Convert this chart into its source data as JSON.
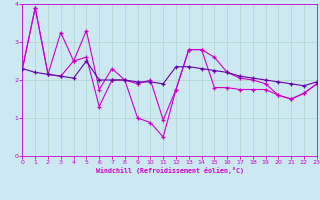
{
  "xlabel": "Windchill (Refroidissement éolien,°C)",
  "bg_color": "#cce8f0",
  "grid_color": "#b0d4cc",
  "line_color_jagged": "#cc00cc",
  "line_color_trend": "#6600aa",
  "xlim": [
    0,
    23
  ],
  "ylim": [
    0,
    4
  ],
  "xticks": [
    0,
    1,
    2,
    3,
    4,
    5,
    6,
    7,
    8,
    9,
    10,
    11,
    12,
    13,
    14,
    15,
    16,
    17,
    18,
    19,
    20,
    21,
    22,
    23
  ],
  "yticks": [
    0,
    1,
    2,
    3,
    4
  ],
  "series1_x": [
    0,
    1,
    2,
    3,
    4,
    5,
    6,
    7,
    8,
    9,
    10,
    11,
    12,
    13,
    14,
    15,
    16,
    17,
    18,
    19,
    20,
    21,
    22,
    23
  ],
  "series1_y": [
    2.3,
    3.9,
    2.15,
    2.1,
    2.5,
    2.6,
    1.3,
    2.0,
    2.0,
    1.9,
    2.0,
    0.95,
    1.75,
    2.8,
    2.8,
    2.6,
    2.2,
    2.05,
    2.0,
    1.9,
    1.6,
    1.5,
    1.65,
    1.9
  ],
  "series2_x": [
    0,
    1,
    2,
    3,
    4,
    5,
    6,
    7,
    8,
    9,
    10,
    11,
    12,
    13,
    14,
    15,
    16,
    17,
    18,
    19,
    20,
    21,
    22,
    23
  ],
  "series2_y": [
    2.3,
    3.9,
    2.15,
    3.25,
    2.5,
    3.3,
    1.75,
    2.3,
    2.0,
    1.0,
    0.88,
    0.5,
    1.75,
    2.8,
    2.8,
    1.8,
    1.8,
    1.75,
    1.75,
    1.75,
    1.6,
    1.5,
    1.65,
    1.9
  ],
  "series3_x": [
    0,
    1,
    2,
    3,
    4,
    5,
    6,
    7,
    8,
    9,
    10,
    11,
    12,
    13,
    14,
    15,
    16,
    17,
    18,
    19,
    20,
    21,
    22,
    23
  ],
  "series3_y": [
    2.3,
    2.2,
    2.15,
    2.1,
    2.05,
    2.5,
    2.0,
    2.0,
    2.0,
    1.95,
    1.95,
    1.9,
    2.35,
    2.35,
    2.3,
    2.25,
    2.2,
    2.1,
    2.05,
    2.0,
    1.95,
    1.9,
    1.85,
    1.95
  ]
}
